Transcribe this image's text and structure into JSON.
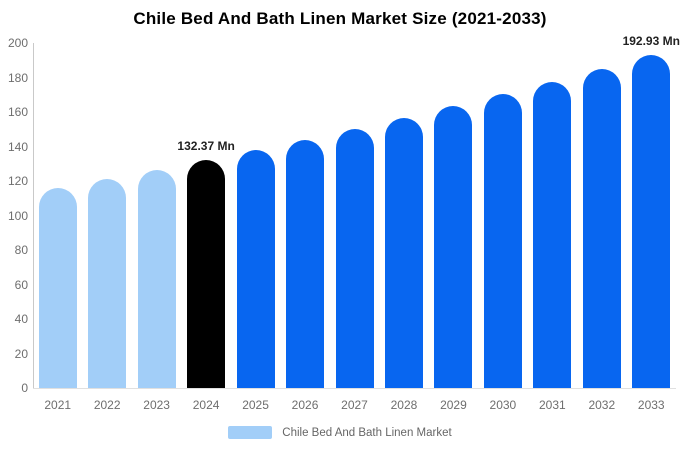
{
  "title": "Chile Bed And Bath Linen Market Size (2021-2033)",
  "chart_data": {
    "type": "bar",
    "title": "Chile Bed And Bath Linen Market Size (2021-2033)",
    "unit": "Mn",
    "categories": [
      "2021",
      "2022",
      "2023",
      "2024",
      "2025",
      "2026",
      "2027",
      "2028",
      "2029",
      "2030",
      "2031",
      "2032",
      "2033"
    ],
    "values": [
      115.9,
      121.0,
      126.4,
      132.37,
      138.0,
      143.9,
      150.1,
      156.5,
      163.2,
      170.2,
      177.4,
      185.0,
      192.93
    ],
    "bar_colors": [
      "#A2CEF8",
      "#A2CEF8",
      "#A2CEF8",
      "#000000",
      "#0866F0",
      "#0866F0",
      "#0866F0",
      "#0866F0",
      "#0866F0",
      "#0866F0",
      "#0866F0",
      "#0866F0",
      "#0866F0"
    ],
    "annotations": [
      {
        "category": "2024",
        "label": "132.37 Mn"
      },
      {
        "category": "2033",
        "label": "192.93 Mn"
      }
    ],
    "xlabel": "",
    "ylabel": "",
    "ylim": [
      0,
      200
    ],
    "ytick_step": 20,
    "grid": false,
    "legend": {
      "label": "Chile Bed And Bath Linen Market",
      "swatch_color": "#A2CEF8",
      "position": "bottom-center"
    },
    "colors": {
      "historical": "#A2CEF8",
      "current_year": "#000000",
      "forecast": "#0866F0",
      "axis_line": "#C9C9C9",
      "baseline": "#E0E0E0",
      "tick_text": "#6E6E6E",
      "title_text": "#000000",
      "annotation_text": "#222222",
      "legend_text": "#666666"
    }
  }
}
